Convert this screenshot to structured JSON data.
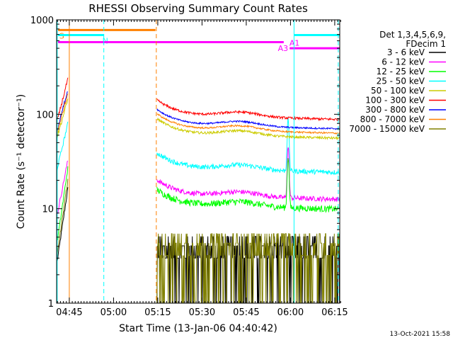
{
  "chart_data": {
    "type": "line",
    "title": "RHESSI Observing Summary Count Rates",
    "xlabel": "Start Time (13-Jan-06 04:40:42)",
    "ylabel": "Count Rate (s⁻¹ detector⁻¹)",
    "y_scale": "log",
    "ylim": [
      1,
      1000
    ],
    "xlim_minutes": [
      0,
      96
    ],
    "x_tick_labels": [
      {
        "label": "04:45",
        "minute": 4.3
      },
      {
        "label": "05:00",
        "minute": 19.3
      },
      {
        "label": "05:15",
        "minute": 34.3
      },
      {
        "label": "05:30",
        "minute": 49.3
      },
      {
        "label": "05:45",
        "minute": 64.3
      },
      {
        "label": "06:00",
        "minute": 79.3
      },
      {
        "label": "06:15",
        "minute": 94.3
      }
    ],
    "y_tick_labels": [
      {
        "label": "1",
        "value": 1
      },
      {
        "label": "10",
        "value": 10
      },
      {
        "label": "100",
        "value": 100
      },
      {
        "label": "1000",
        "value": 1000
      }
    ],
    "legend_header": [
      "Det 1,3,4,5,6,9,",
      "FDecim 1"
    ],
    "legend_position": "right",
    "series": [
      {
        "name": "3 - 6 keV",
        "color": "#000000",
        "level": 3,
        "noise": 0.25,
        "pre": [
          2.5,
          18
        ]
      },
      {
        "name": "6 - 12 keV",
        "color": "#ff00ff",
        "level": 14,
        "noise": 0.06,
        "pre": [
          8,
          35
        ]
      },
      {
        "name": "12 - 25 keV",
        "color": "#00ff00",
        "level": 11,
        "noise": 0.08,
        "pre": [
          4,
          30
        ]
      },
      {
        "name": "25 - 50 keV",
        "color": "#00ffff",
        "level": 27,
        "noise": 0.06,
        "pre": [
          25,
          85
        ]
      },
      {
        "name": "50 - 100 keV",
        "color": "#cccc00",
        "level": 62,
        "noise": 0.03,
        "pre": [
          55,
          150
        ]
      },
      {
        "name": "100 - 300 keV",
        "color": "#ff0000",
        "level": 98,
        "noise": 0.03,
        "pre": [
          80,
          250
        ]
      },
      {
        "name": "300 - 800 keV",
        "color": "#0000ff",
        "level": 78,
        "noise": 0.02,
        "pre": [
          65,
          190
        ]
      },
      {
        "name": "800 - 7000 keV",
        "color": "#ff8000",
        "level": 70,
        "noise": 0.02,
        "pre": [
          60,
          175
        ]
      },
      {
        "name": "7000 - 15000 keV",
        "color": "#808000",
        "level": 3.2,
        "noise": 0.22,
        "pre": [
          3,
          22
        ]
      }
    ],
    "data_gap_minutes": [
      4.0,
      34.0
    ],
    "flags": [
      {
        "label": "S",
        "color": "#ff8000",
        "start": 0.5,
        "end": 33.5,
        "value": 780
      },
      {
        "label": "N",
        "color": "#00ffff",
        "start": 0.5,
        "end": 16.0,
        "value": 690
      },
      {
        "label": "",
        "color": "#00ffff",
        "start": 80.5,
        "end": 96.0,
        "value": 690
      },
      {
        "label": "A1",
        "color": "#ff00ff",
        "start": 0.5,
        "end": 77.0,
        "value": 580
      },
      {
        "label": "A3",
        "color": "#ff00ff",
        "start": 79.0,
        "end": 96.0,
        "value": 500
      }
    ],
    "markers": [
      {
        "type": "solid",
        "color": "#00ffff",
        "minute": 0.2
      },
      {
        "type": "solid",
        "color": "#ff8000",
        "minute": 4.3
      },
      {
        "type": "dashed",
        "color": "#00ffff",
        "minute": 16.0
      },
      {
        "type": "dashed",
        "color": "#ff8000",
        "minute": 33.8
      },
      {
        "type": "solid",
        "color": "#00ffff",
        "minute": 80.5
      },
      {
        "type": "dashed",
        "color": "#00ffff",
        "minute": 95.5
      }
    ],
    "footer_timestamp": "13-Oct-2021 15:58"
  }
}
